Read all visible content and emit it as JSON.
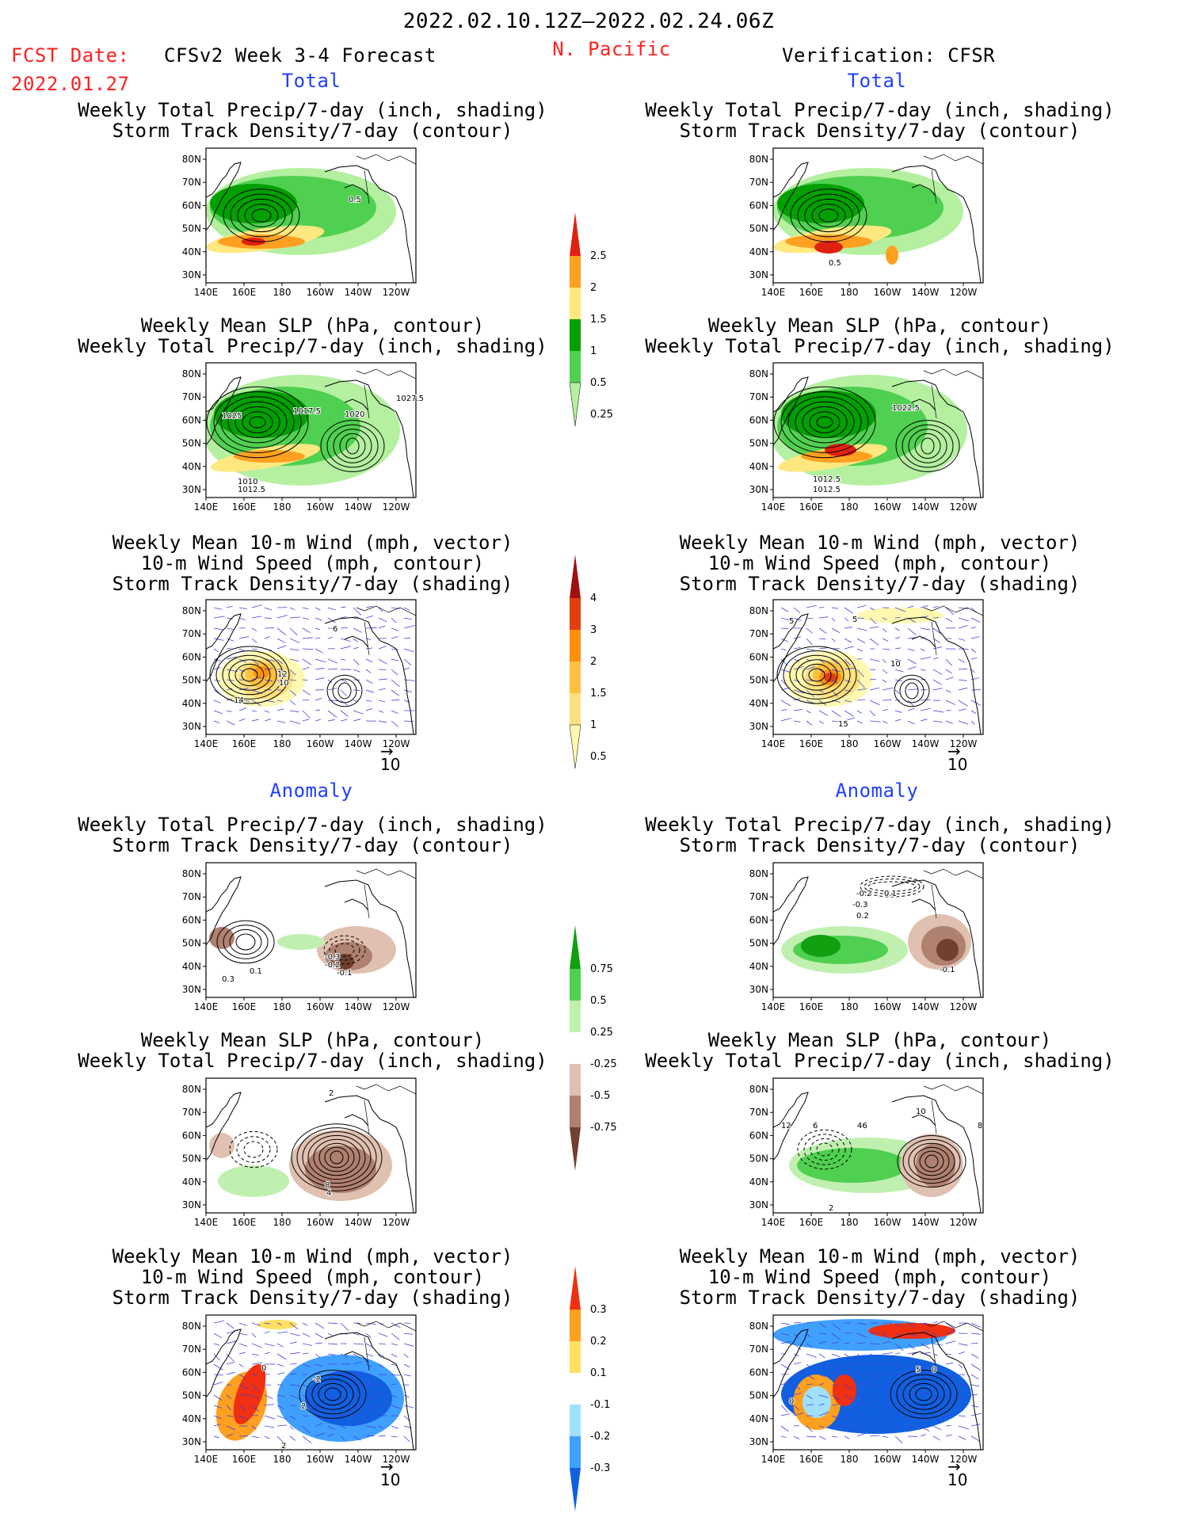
{
  "header": {
    "date_range": "2022.02.10.12Z–2022.02.24.06Z",
    "fcst_label": "FCST Date:",
    "fcst_date": "2022.01.27",
    "forecast_title": "CFSv2 Week 3-4 Forecast",
    "region": "N. Pacific",
    "verification_title": "Verification: CFSR"
  },
  "sections": {
    "total": "Total",
    "anomaly": "Anomaly"
  },
  "panel_titles": {
    "precip_std": [
      "Weekly Total Precip/7-day (inch, shading)",
      "Storm Track Density/7-day (contour)"
    ],
    "slp_precip": [
      "Weekly Mean SLP (hPa, contour)",
      "Weekly Total Precip/7-day (inch, shading)"
    ],
    "wind_std": [
      "Weekly Mean 10-m Wind (mph, vector)",
      "10-m Wind Speed (mph, contour)",
      "Storm Track Density/7-day (shading)"
    ]
  },
  "axes": {
    "lat_labels": [
      "80N",
      "70N",
      "60N",
      "50N",
      "40N",
      "30N"
    ],
    "lon_labels": [
      "140E",
      "160E",
      "180",
      "160W",
      "140W",
      "120W"
    ]
  },
  "vector_reference": "10",
  "colors": {
    "precip_025": "#b4f0a0",
    "precip_05": "#50d050",
    "precip_1": "#00a000",
    "precip_15": "#ffe880",
    "precip_2": "#ffa020",
    "precip_25": "#e02010",
    "std_05": "#fff8b0",
    "std_1": "#ffe080",
    "std_15": "#ffc040",
    "std_2": "#ff9010",
    "std_3": "#e04010",
    "std_4": "#a01010",
    "anom_pos1": "#c0f0b0",
    "anom_pos2": "#50d050",
    "anom_pos3": "#10a010",
    "anom_neg1": "#e0c0b0",
    "anom_neg2": "#b08070",
    "anom_neg3": "#704030",
    "std_anom_neg3": "#1060e0",
    "std_anom_neg2": "#40a0ff",
    "std_anom_neg1": "#a0e0ff",
    "std_anom_pos1": "#ffe060",
    "std_anom_pos2": "#ffa020",
    "std_anom_pos3": "#f03010",
    "vector_color": "#4040e0"
  },
  "chart_data": [
    {
      "type": "heatmap",
      "panel": "forecast-total-precip",
      "title": "Weekly Total Precip/7-day (inch, shading) / Storm Track Density/7-day (contour)",
      "contour_labels": [
        "0.5"
      ],
      "colorbar": {
        "levels": [
          0.25,
          0.5,
          1,
          1.5,
          2,
          2.5
        ]
      }
    },
    {
      "type": "heatmap",
      "panel": "verification-total-precip",
      "title": "Weekly Total Precip/7-day (inch, shading) / Storm Track Density/7-day (contour)",
      "contour_labels": [
        "0.5"
      ]
    },
    {
      "type": "heatmap",
      "panel": "forecast-total-slp",
      "title": "Weekly Mean SLP (hPa, contour) / Weekly Total Precip/7-day (inch, shading)",
      "contour_labels": [
        "1025",
        "1017.5",
        "1020",
        "1027.5",
        "1010",
        "1012.5"
      ]
    },
    {
      "type": "heatmap",
      "panel": "verification-total-slp",
      "title": "Weekly Mean SLP (hPa, contour) / Weekly Total Precip/7-day (inch, shading)",
      "contour_labels": [
        "1022.5",
        "1012.5",
        "1012.5"
      ]
    },
    {
      "type": "heatmap",
      "panel": "forecast-total-wind",
      "title": "Weekly Mean 10-m Wind / 10-m Wind Speed / Storm Track Density",
      "contour_labels": [
        "6",
        "12",
        "10",
        "14"
      ],
      "colorbar": {
        "levels": [
          0.5,
          1,
          1.5,
          2,
          3,
          4
        ]
      }
    },
    {
      "type": "heatmap",
      "panel": "verification-total-wind",
      "title": "Weekly Mean 10-m Wind / 10-m Wind Speed / Storm Track Density",
      "contour_labels": [
        "5",
        "5",
        "10",
        "15"
      ]
    },
    {
      "type": "heatmap",
      "panel": "forecast-anomaly-precip",
      "title": "Weekly Total Precip/7-day (inch, shading) / Storm Track Density/7-day (contour)",
      "contour_labels": [
        "0.3",
        "0.1",
        "-0.3",
        "-0.2",
        "-0.1"
      ],
      "colorbar": {
        "levels": [
          -0.75,
          -0.5,
          -0.25,
          0.25,
          0.5,
          0.75
        ]
      }
    },
    {
      "type": "heatmap",
      "panel": "verification-anomaly-precip",
      "title": "Weekly Total Precip/7-day (inch, shading) / Storm Track Density/7-day (contour)",
      "contour_labels": [
        "-0.2",
        "0.1",
        "-0.3",
        "0.2",
        "-0.1"
      ]
    },
    {
      "type": "heatmap",
      "panel": "forecast-anomaly-slp",
      "title": "Weekly Mean SLP (hPa, contour) / Weekly Total Precip/7-day (inch, shading)",
      "contour_labels": [
        "2",
        "8",
        "4"
      ]
    },
    {
      "type": "heatmap",
      "panel": "verification-anomaly-slp",
      "title": "Weekly Mean SLP (hPa, contour) / Weekly Total Precip/7-day (inch, shading)",
      "contour_labels": [
        "12",
        "6",
        "46",
        "10",
        "8",
        "2"
      ]
    },
    {
      "type": "heatmap",
      "panel": "forecast-anomaly-wind",
      "title": "Weekly Mean 10-m Wind / 10-m Wind Speed / Storm Track Density",
      "contour_labels": [
        "0",
        "-2",
        "2",
        "2"
      ],
      "colorbar": {
        "levels": [
          -0.3,
          -0.2,
          -0.1,
          0.1,
          0.2,
          0.3
        ]
      }
    },
    {
      "type": "heatmap",
      "panel": "verification-anomaly-wind",
      "title": "Weekly Mean 10-m Wind / 10-m Wind Speed / Storm Track Density",
      "contour_labels": [
        "5",
        "0",
        "0"
      ]
    }
  ]
}
